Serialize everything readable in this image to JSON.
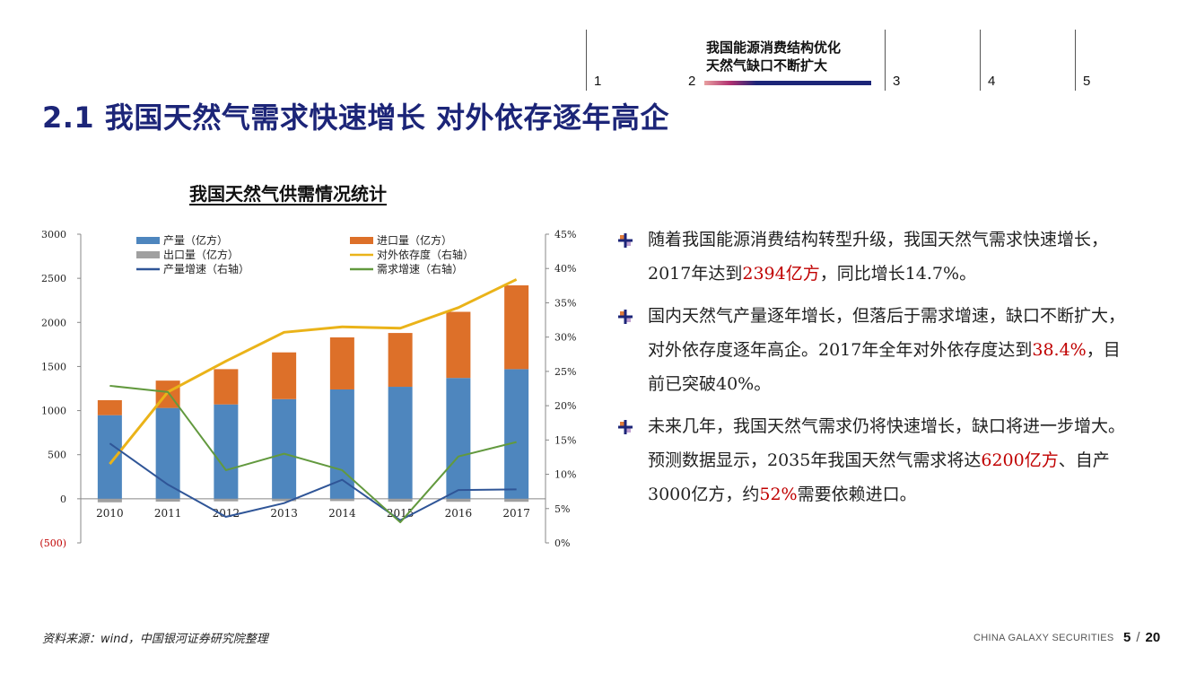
{
  "nav": {
    "items": [
      {
        "num": "1"
      },
      {
        "num": "2",
        "title_line1": "我国能源消费结构优化",
        "title_line2": "天然气缺口不断扩大"
      },
      {
        "num": "3"
      },
      {
        "num": "4"
      },
      {
        "num": "5"
      }
    ]
  },
  "page_title": "2.1  我国天然气需求快速增长  对外依存逐年高企",
  "chart_title": "我国天然气供需情况统计",
  "chart_data": {
    "type": "bar",
    "categories": [
      "2010",
      "2011",
      "2012",
      "2013",
      "2014",
      "2015",
      "2016",
      "2017"
    ],
    "series": [
      {
        "name": "产量（亿方）",
        "kind": "stacked-bar",
        "axis": "left",
        "color": "#4e86be",
        "values": [
          948,
          1030,
          1070,
          1130,
          1240,
          1270,
          1370,
          1470
        ]
      },
      {
        "name": "进口量（亿方）",
        "kind": "stacked-bar",
        "axis": "left",
        "color": "#dd7029",
        "values": [
          170,
          310,
          400,
          530,
          590,
          610,
          750,
          950
        ]
      },
      {
        "name": "出口量（亿方）",
        "kind": "stacked-bar-negative",
        "axis": "left",
        "color": "#a0a0a0",
        "values": [
          -40,
          -32,
          -29,
          -27,
          -26,
          -32,
          -34,
          -34
        ]
      },
      {
        "name": "对外依存度（右轴）",
        "kind": "line",
        "axis": "right",
        "color": "#eab319",
        "values": [
          11.5,
          22,
          26.5,
          30.7,
          31.5,
          31.3,
          34.3,
          38.4
        ]
      },
      {
        "name": "产量增速（右轴）",
        "kind": "line",
        "axis": "right",
        "color": "#2f5597",
        "values": [
          14.5,
          8.5,
          3.8,
          5.8,
          9.2,
          3.3,
          7.7,
          7.8
        ]
      },
      {
        "name": "需求增速（右轴）",
        "kind": "line",
        "axis": "right",
        "color": "#62993e",
        "values": [
          22.9,
          22,
          10.6,
          13,
          10.6,
          3,
          12.6,
          14.7
        ]
      }
    ],
    "left_axis": {
      "min": -500,
      "max": 3000,
      "ticks": [
        "(500)",
        "0",
        "500",
        "1000",
        "1500",
        "2000",
        "2500",
        "3000"
      ]
    },
    "right_axis": {
      "min": 0,
      "max": 45,
      "ticks": [
        "0%",
        "5%",
        "10%",
        "15%",
        "20%",
        "25%",
        "30%",
        "35%",
        "40%",
        "45%"
      ]
    },
    "legend_position": "top-inside"
  },
  "bullets": [
    {
      "parts": [
        {
          "text": "随着我国能源消费结构转型升级，我国天然气需求快速增长，2017年达到",
          "hl": false
        },
        {
          "text": "2394亿方",
          "hl": true
        },
        {
          "text": "，同比增长14.7%。",
          "hl": false
        }
      ]
    },
    {
      "parts": [
        {
          "text": "国内天然气产量逐年增长，但落后于需求增速，缺口不断扩大，对外依存度逐年高企。2017年全年对外依存度达到",
          "hl": false
        },
        {
          "text": "38.4%",
          "hl": true
        },
        {
          "text": "，目前已突破40%。",
          "hl": false
        }
      ]
    },
    {
      "parts": [
        {
          "text": "未来几年，我国天然气需求仍将快速增长，缺口将进一步增大。预测数据显示，2035年我国天然气需求将达",
          "hl": false
        },
        {
          "text": "6200亿方",
          "hl": true
        },
        {
          "text": "、自产3000亿方，约",
          "hl": false
        },
        {
          "text": "52%",
          "hl": true
        },
        {
          "text": "需要依赖进口。",
          "hl": false
        }
      ]
    }
  ],
  "footer": {
    "source": "资料来源：wind，中国银河证券研究院整理",
    "company": "CHINA GALAXY SECURITIES",
    "page_current": "5",
    "page_sep": "/",
    "page_total": "20"
  },
  "colors": {
    "accent": "#1c2578",
    "highlight": "#c00000"
  }
}
